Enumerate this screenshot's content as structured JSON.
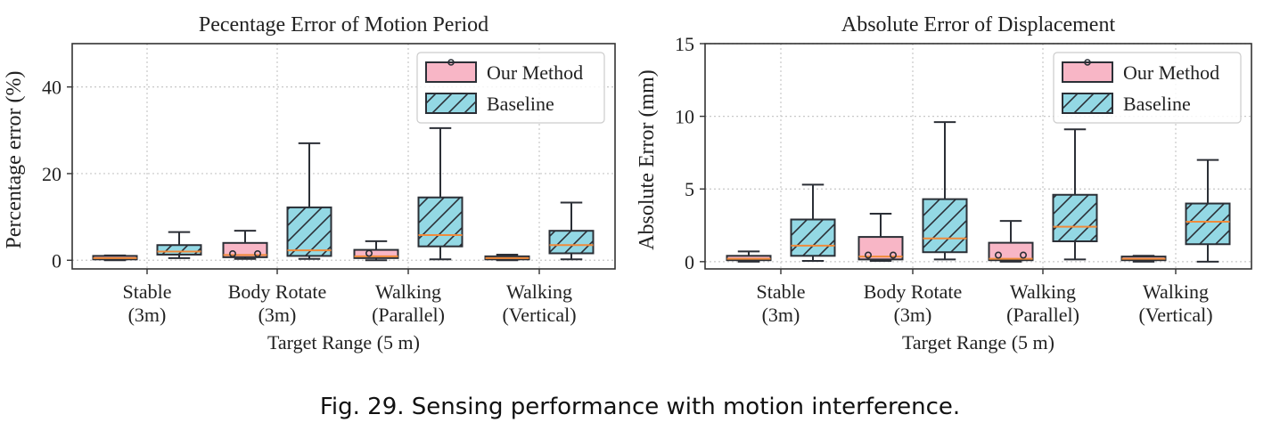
{
  "caption": "Fig. 29.  Sensing performance with motion interference.",
  "colors": {
    "our_method": "#f8b6c6",
    "baseline": "#93d8e4",
    "median": "#f08a3a",
    "edge": "#2b2f36",
    "grid": "#c8c8c8"
  },
  "chart_data": [
    {
      "type": "box",
      "title": "Pecentage Error of Motion Period",
      "xlabel": "Target Range (5 m)",
      "ylabel": "Percentage error (%)",
      "ylim": [
        -2,
        50
      ],
      "yticks": [
        0,
        20,
        40
      ],
      "grid": true,
      "legend_position": "top-right",
      "categories": [
        [
          "Stable",
          "(3m)"
        ],
        [
          "Body Rotate",
          "(3m)"
        ],
        [
          "Walking",
          "(Parallel)"
        ],
        [
          "Walking",
          "(Vertical)"
        ]
      ],
      "series": [
        {
          "name": "Our Method",
          "boxes": [
            {
              "whislo": 0.0,
              "q1": 0.2,
              "med": 0.5,
              "q3": 1.0,
              "whishi": 1.1,
              "fliers": []
            },
            {
              "whislo": 0.3,
              "q1": 0.7,
              "med": 1.2,
              "q3": 4.0,
              "whishi": 6.8,
              "fliers": [
                1.5,
                1.5
              ]
            },
            {
              "whislo": 0.0,
              "q1": 0.5,
              "med": 0.9,
              "q3": 2.4,
              "whishi": 4.4,
              "fliers": [
                1.6
              ]
            },
            {
              "whislo": 0.0,
              "q1": 0.2,
              "med": 0.5,
              "q3": 0.9,
              "whishi": 1.3,
              "fliers": []
            }
          ]
        },
        {
          "name": "Baseline",
          "boxes": [
            {
              "whislo": 0.5,
              "q1": 1.3,
              "med": 2.0,
              "q3": 3.5,
              "whishi": 6.5,
              "fliers": []
            },
            {
              "whislo": 0.3,
              "q1": 1.0,
              "med": 2.3,
              "q3": 12.2,
              "whishi": 27.0,
              "fliers": []
            },
            {
              "whislo": 0.2,
              "q1": 3.2,
              "med": 5.8,
              "q3": 14.5,
              "whishi": 30.5,
              "fliers": []
            },
            {
              "whislo": 0.2,
              "q1": 1.6,
              "med": 3.5,
              "q3": 6.8,
              "whishi": 13.3,
              "fliers": []
            }
          ]
        }
      ]
    },
    {
      "type": "box",
      "title": "Absolute Error of Displacement",
      "xlabel": "Target Range (5 m)",
      "ylabel": "Absolute Error (mm)",
      "ylim": [
        -0.5,
        15
      ],
      "yticks": [
        0,
        5,
        10,
        15
      ],
      "grid": true,
      "legend_position": "top-right",
      "categories": [
        [
          "Stable",
          "(3m)"
        ],
        [
          "Body Rotate",
          "(3m)"
        ],
        [
          "Walking",
          "(Parallel)"
        ],
        [
          "Walking",
          "(Vertical)"
        ]
      ],
      "series": [
        {
          "name": "Our Method",
          "boxes": [
            {
              "whislo": 0.0,
              "q1": 0.1,
              "med": 0.2,
              "q3": 0.4,
              "whishi": 0.7,
              "fliers": []
            },
            {
              "whislo": 0.05,
              "q1": 0.15,
              "med": 0.35,
              "q3": 1.7,
              "whishi": 3.3,
              "fliers": [
                0.45,
                0.45
              ]
            },
            {
              "whislo": 0.0,
              "q1": 0.1,
              "med": 0.2,
              "q3": 1.3,
              "whishi": 2.8,
              "fliers": [
                0.45,
                0.45
              ]
            },
            {
              "whislo": 0.0,
              "q1": 0.1,
              "med": 0.2,
              "q3": 0.35,
              "whishi": 0.4,
              "fliers": []
            }
          ]
        },
        {
          "name": "Baseline",
          "boxes": [
            {
              "whislo": 0.05,
              "q1": 0.4,
              "med": 1.1,
              "q3": 2.9,
              "whishi": 5.3,
              "fliers": []
            },
            {
              "whislo": 0.15,
              "q1": 0.65,
              "med": 1.6,
              "q3": 4.3,
              "whishi": 9.6,
              "fliers": []
            },
            {
              "whislo": 0.15,
              "q1": 1.4,
              "med": 2.4,
              "q3": 4.6,
              "whishi": 9.1,
              "fliers": []
            },
            {
              "whislo": 0.0,
              "q1": 1.2,
              "med": 2.75,
              "q3": 4.0,
              "whishi": 7.0,
              "fliers": []
            }
          ]
        }
      ]
    }
  ]
}
